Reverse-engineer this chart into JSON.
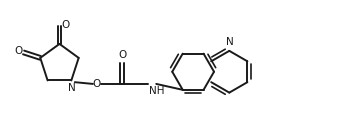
{
  "bg_color": "#ffffff",
  "line_color": "#1a1a1a",
  "line_width": 1.4,
  "font_size": 7.5,
  "fig_width": 3.48,
  "fig_height": 1.4,
  "dpi": 100,
  "xlim": [
    -0.5,
    9.5
  ],
  "ylim": [
    -0.3,
    3.7
  ]
}
